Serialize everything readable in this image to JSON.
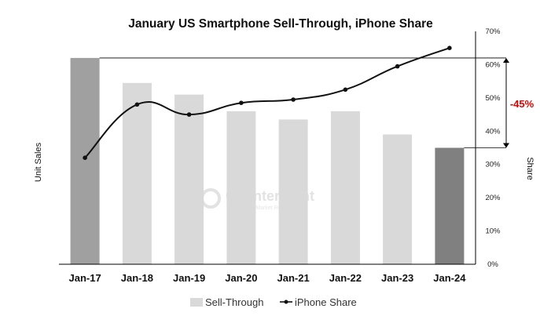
{
  "chart_data": {
    "type": "bar",
    "title": "January US Smartphone Sell-Through, iPhone Share",
    "categories": [
      "Jan-17",
      "Jan-18",
      "Jan-19",
      "Jan-20",
      "Jan-21",
      "Jan-22",
      "Jan-23",
      "Jan-24"
    ],
    "ylabel": "Unit Sales",
    "y2label": "Share",
    "y2lim": [
      0,
      70
    ],
    "y2ticks": [
      "0%",
      "10%",
      "20%",
      "30%",
      "40%",
      "50%",
      "60%",
      "70%"
    ],
    "series": [
      {
        "name": "Sell-Through",
        "type": "bar",
        "axis": "left",
        "values": [
          62,
          54.5,
          51,
          46,
          43.5,
          46,
          39,
          35
        ],
        "colors": [
          "#a0a0a0",
          "#d9d9d9",
          "#d9d9d9",
          "#d9d9d9",
          "#d9d9d9",
          "#d9d9d9",
          "#d9d9d9",
          "#808080"
        ]
      },
      {
        "name": "iPhone Share",
        "type": "line",
        "axis": "right",
        "values": [
          32,
          48,
          45,
          48.5,
          49.5,
          52.5,
          59.5,
          65
        ]
      }
    ],
    "annotation": {
      "text": "-45%",
      "color": "#e00000"
    },
    "legend": {
      "position": "bottom-center"
    },
    "grid": false
  },
  "watermark": {
    "name": "Counterpoint",
    "tagline": "Technology Market Research"
  }
}
